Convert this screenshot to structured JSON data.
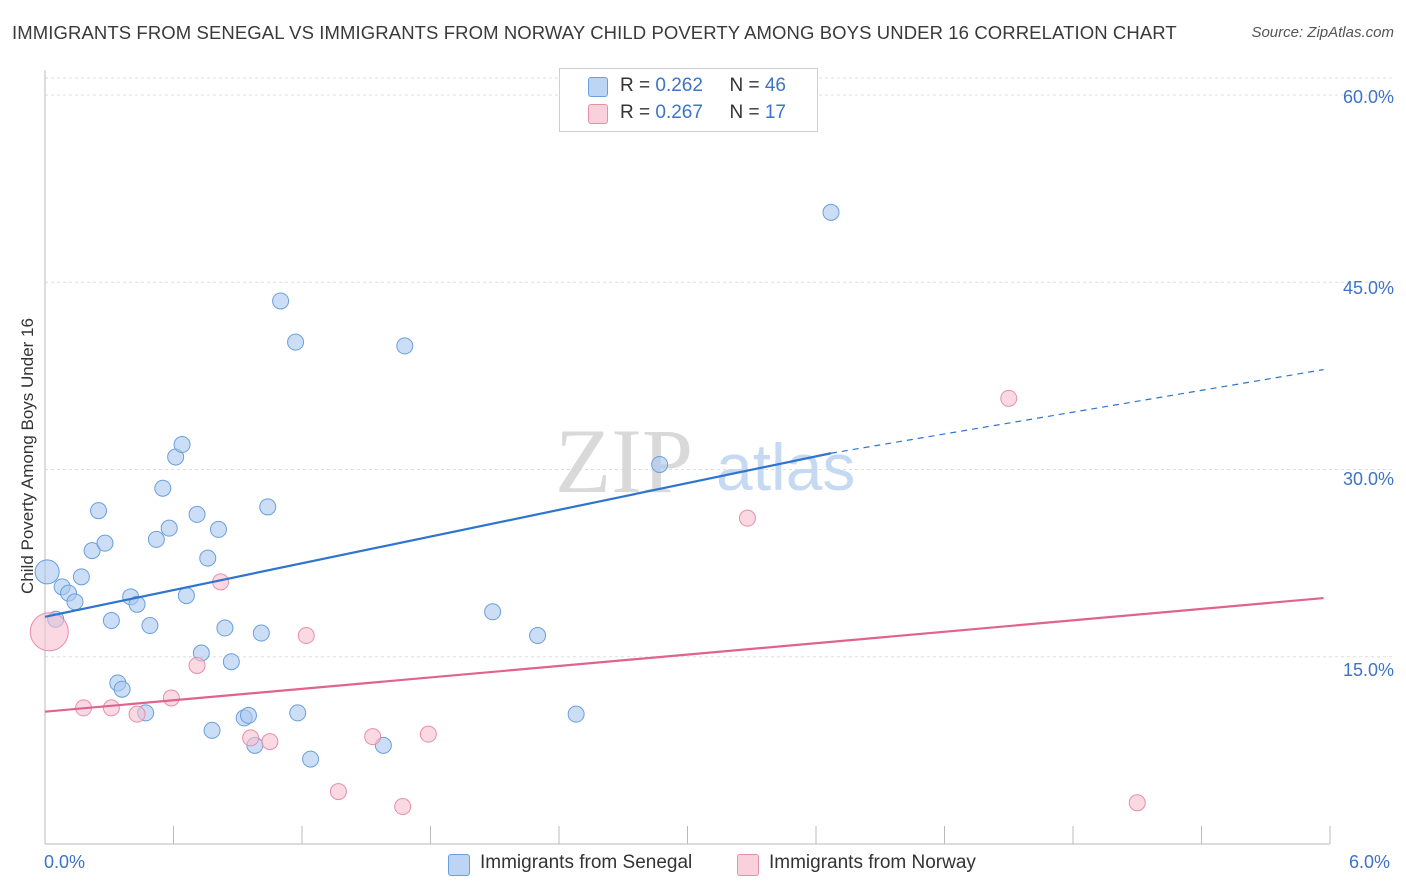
{
  "header": {
    "title": "IMMIGRANTS FROM SENEGAL VS IMMIGRANTS FROM NORWAY CHILD POVERTY AMONG BOYS UNDER 16 CORRELATION CHART",
    "source": "Source: ZipAtlas.com"
  },
  "watermark": {
    "zip": "ZIP",
    "atlas": "atlas"
  },
  "colors": {
    "senegal_fill": "#a8c8f0",
    "senegal_stroke": "#6a9fdc",
    "senegal_line": "#2f74cf",
    "norway_fill": "#f7bfd0",
    "norway_stroke": "#e88eab",
    "norway_line": "#e0628f",
    "tick_text": "#3d73c6",
    "grid": "#dddddd"
  },
  "legend": {
    "senegal": {
      "r_label": "R = ",
      "r_value": "0.262",
      "n_label": "N = ",
      "n_value": "46"
    },
    "norway": {
      "r_label": "R = ",
      "r_value": "0.267",
      "n_label": "N = ",
      "n_value": "17"
    }
  },
  "chart_data": {
    "type": "scatter",
    "title": "IMMIGRANTS FROM SENEGAL VS IMMIGRANTS FROM NORWAY CHILD POVERTY AMONG BOYS UNDER 16 CORRELATION CHART",
    "xlabel": "",
    "ylabel": "Child Poverty Among Boys Under 16",
    "xlim": [
      0,
      6
    ],
    "ylim": [
      0,
      62
    ],
    "x_tick_labels": [
      "0.0%",
      "6.0%"
    ],
    "y_ticks": [
      15,
      30,
      45,
      60
    ],
    "y_tick_labels": [
      "15.0%",
      "30.0%",
      "45.0%",
      "60.0%"
    ],
    "grid": true,
    "legend_position": "top-center",
    "series": [
      {
        "name": "Immigrants from Senegal",
        "points": [
          [
            0.01,
            21.8,
            2
          ],
          [
            0.05,
            18.0,
            1
          ],
          [
            0.08,
            20.6,
            1
          ],
          [
            0.11,
            20.1,
            1
          ],
          [
            0.14,
            19.4,
            1
          ],
          [
            0.17,
            21.4,
            1
          ],
          [
            0.22,
            23.5,
            1
          ],
          [
            0.25,
            26.7,
            1
          ],
          [
            0.28,
            24.1,
            1
          ],
          [
            0.31,
            17.9,
            1
          ],
          [
            0.34,
            12.9,
            1
          ],
          [
            0.36,
            12.4,
            1
          ],
          [
            0.4,
            19.8,
            1
          ],
          [
            0.43,
            19.2,
            1
          ],
          [
            0.47,
            10.5,
            1
          ],
          [
            0.49,
            17.5,
            1
          ],
          [
            0.52,
            24.4,
            1
          ],
          [
            0.55,
            28.5,
            1
          ],
          [
            0.58,
            25.3,
            1
          ],
          [
            0.61,
            31.0,
            1
          ],
          [
            0.64,
            32.0,
            1
          ],
          [
            0.66,
            19.9,
            1
          ],
          [
            0.71,
            26.4,
            1
          ],
          [
            0.73,
            15.3,
            1
          ],
          [
            0.76,
            22.9,
            1
          ],
          [
            0.78,
            9.1,
            1
          ],
          [
            0.81,
            25.2,
            1
          ],
          [
            0.84,
            17.3,
            1
          ],
          [
            0.87,
            14.6,
            1
          ],
          [
            0.93,
            10.1,
            1
          ],
          [
            0.95,
            10.3,
            1
          ],
          [
            0.98,
            7.9,
            1
          ],
          [
            1.01,
            16.9,
            1
          ],
          [
            1.04,
            27.0,
            1
          ],
          [
            1.1,
            43.5,
            1
          ],
          [
            1.17,
            40.2,
            1
          ],
          [
            1.18,
            10.5,
            1
          ],
          [
            1.24,
            6.8,
            1
          ],
          [
            1.58,
            7.9,
            1
          ],
          [
            1.68,
            39.9,
            1
          ],
          [
            2.09,
            18.6,
            1
          ],
          [
            2.3,
            16.7,
            1
          ],
          [
            2.48,
            10.4,
            1
          ],
          [
            2.87,
            30.4,
            1
          ],
          [
            3.67,
            50.6,
            1
          ]
        ],
        "trend": {
          "x": [
            0.0,
            3.67
          ],
          "y": [
            18.2,
            31.3
          ]
        },
        "trend_extension": {
          "x": [
            3.67,
            5.97
          ],
          "y": [
            31.3,
            38.0
          ]
        }
      },
      {
        "name": "Immigrants from Norway",
        "points": [
          [
            0.02,
            17.0,
            3
          ],
          [
            0.18,
            10.9,
            1
          ],
          [
            0.31,
            10.9,
            1
          ],
          [
            0.43,
            10.4,
            1
          ],
          [
            0.59,
            11.7,
            1
          ],
          [
            0.71,
            14.3,
            1
          ],
          [
            0.82,
            21.0,
            1
          ],
          [
            0.96,
            8.5,
            1
          ],
          [
            1.05,
            8.2,
            1
          ],
          [
            1.22,
            16.7,
            1
          ],
          [
            1.37,
            4.2,
            1
          ],
          [
            1.53,
            8.6,
            1
          ],
          [
            1.67,
            3.0,
            1
          ],
          [
            1.79,
            8.8,
            1
          ],
          [
            3.28,
            26.1,
            1
          ],
          [
            4.5,
            35.7,
            1
          ],
          [
            5.1,
            3.3,
            1
          ]
        ],
        "trend": {
          "x": [
            0.0,
            5.97
          ],
          "y": [
            10.6,
            19.7
          ]
        }
      }
    ]
  }
}
